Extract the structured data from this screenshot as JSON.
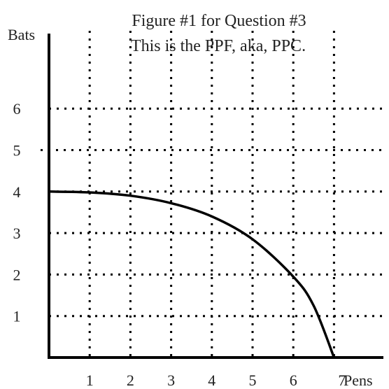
{
  "chart_data": {
    "type": "line",
    "title_line1": "Figure #1 for Question #3",
    "title_line2": "This is the PPF, aka, PPC.",
    "xlabel": "Pens",
    "ylabel": "Bats",
    "xlim": [
      0,
      7.6
    ],
    "ylim": [
      0,
      6.6
    ],
    "x_ticks": [
      {
        "value": 1,
        "label": "1"
      },
      {
        "value": 2,
        "label": "2"
      },
      {
        "value": 3,
        "label": "3"
      },
      {
        "value": 4,
        "label": "4"
      },
      {
        "value": 5,
        "label": "5"
      },
      {
        "value": 6,
        "label": "6"
      },
      {
        "value": 7,
        "label": "7"
      }
    ],
    "y_ticks": [
      {
        "value": 1,
        "label": "1"
      },
      {
        "value": 2,
        "label": "2"
      },
      {
        "value": 3,
        "label": "3"
      },
      {
        "value": 4,
        "label": "4"
      },
      {
        "value": 5,
        "label": "5"
      },
      {
        "value": 6,
        "label": "6"
      }
    ],
    "grid": "dotted",
    "series": [
      {
        "color": "#000000",
        "points": [
          {
            "x": 0,
            "y": 4.0
          },
          {
            "x": 1,
            "y": 3.98
          },
          {
            "x": 2,
            "y": 3.9
          },
          {
            "x": 3,
            "y": 3.72
          },
          {
            "x": 4,
            "y": 3.4
          },
          {
            "x": 5,
            "y": 2.85
          },
          {
            "x": 6,
            "y": 1.95
          },
          {
            "x": 6.5,
            "y": 1.25
          },
          {
            "x": 7,
            "y": 0
          }
        ]
      }
    ]
  }
}
